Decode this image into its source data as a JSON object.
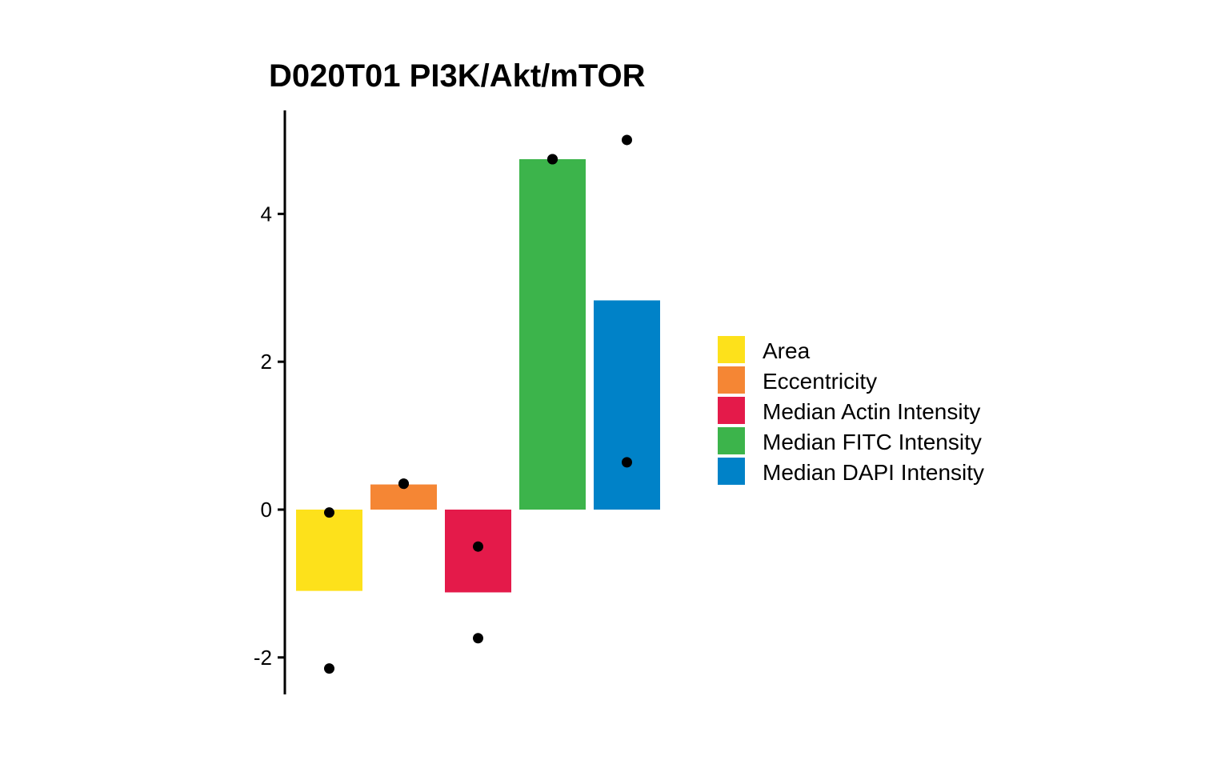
{
  "chart_data": {
    "type": "bar",
    "title": "D020T01 PI3K/Akt/mTOR",
    "xlabel": "",
    "ylabel": "",
    "categories": [
      "Area",
      "Eccentricity",
      "Median Actin Intensity",
      "Median FITC Intensity",
      "Median DAPI Intensity"
    ],
    "values": [
      -1.1,
      0.34,
      -1.12,
      4.74,
      2.83
    ],
    "points": [
      {
        "category": "Area",
        "values": [
          -0.04,
          -2.15
        ]
      },
      {
        "category": "Eccentricity",
        "values": [
          0.35,
          0.35
        ]
      },
      {
        "category": "Median Actin Intensity",
        "values": [
          -0.5,
          -1.74
        ]
      },
      {
        "category": "Median FITC Intensity",
        "values": [
          4.74,
          4.74
        ]
      },
      {
        "category": "Median DAPI Intensity",
        "values": [
          5.0,
          0.64
        ]
      }
    ],
    "colors": [
      "#FDE11B",
      "#F58634",
      "#E41A4A",
      "#3CB44B",
      "#0082C8"
    ],
    "point_color": "#000000",
    "yticks": [
      -2,
      0,
      2,
      4
    ],
    "ylim": [
      -2.5,
      5.4
    ],
    "grid": false,
    "legend": {
      "position": "right",
      "entries": [
        "Area",
        "Eccentricity",
        "Median Actin Intensity",
        "Median FITC Intensity",
        "Median DAPI Intensity"
      ]
    }
  }
}
